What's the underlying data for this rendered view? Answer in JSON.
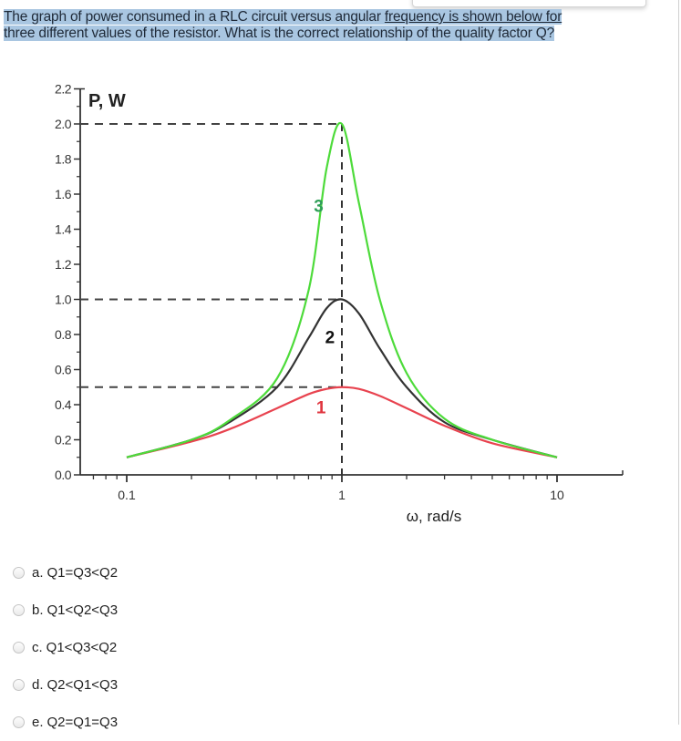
{
  "question": {
    "line1_pre": "The graph of power consumed in a RLC circuit versus angular ",
    "line1_link": "frequency is shown below for",
    "line2": "three different values of the resistor. What is the correct relationship of the quality factor Q?"
  },
  "options": [
    {
      "letter": "a.",
      "text": "Q1=Q3<Q2"
    },
    {
      "letter": "b.",
      "text": "Q1<Q2<Q3"
    },
    {
      "letter": "c.",
      "text": "Q1<Q3<Q2"
    },
    {
      "letter": "d.",
      "text": "Q2<Q1<Q3"
    },
    {
      "letter": "e.",
      "text": "Q2=Q1=Q3"
    }
  ],
  "chart_data": {
    "type": "line",
    "title": "",
    "ylabel": "P, W",
    "xlabel": "ω, rad/s",
    "xscale": "log",
    "xlim": [
      0.05,
      20
    ],
    "ylim": [
      0.0,
      2.2
    ],
    "x_ticks": [
      "0.1",
      "1",
      "10"
    ],
    "y_ticks": [
      "0.0",
      "0.2",
      "0.4",
      "0.6",
      "0.8",
      "1.0",
      "1.2",
      "1.4",
      "1.6",
      "1.8",
      "2.0",
      "2.2"
    ],
    "grid": false,
    "reference_lines": [
      {
        "type": "horizontal",
        "y": 2.0,
        "style": "dashed"
      },
      {
        "type": "horizontal",
        "y": 1.0,
        "style": "dashed"
      },
      {
        "type": "horizontal",
        "y": 0.5,
        "style": "dashed"
      },
      {
        "type": "vertical",
        "x": 1,
        "style": "dashed"
      }
    ],
    "x": [
      0.1,
      0.2,
      0.3,
      0.5,
      0.7,
      0.85,
      1.0,
      1.2,
      1.5,
      2,
      3,
      5,
      10
    ],
    "series": [
      {
        "name": "1",
        "color": "#e8434f",
        "values": [
          0.1,
          0.19,
          0.26,
          0.38,
          0.46,
          0.49,
          0.5,
          0.49,
          0.45,
          0.38,
          0.28,
          0.18,
          0.1
        ]
      },
      {
        "name": "2",
        "color": "#333333",
        "values": [
          0.1,
          0.2,
          0.3,
          0.5,
          0.78,
          0.95,
          1.0,
          0.92,
          0.72,
          0.5,
          0.3,
          0.2,
          0.1
        ]
      },
      {
        "name": "3",
        "color": "#4ddb3a",
        "values": [
          0.1,
          0.2,
          0.31,
          0.55,
          1.05,
          1.75,
          2.0,
          1.55,
          1.0,
          0.58,
          0.32,
          0.2,
          0.1
        ]
      }
    ],
    "annotations": [
      {
        "text": "3",
        "x": 0.78,
        "y": 1.5,
        "color": "#2e9e57"
      },
      {
        "text": "2",
        "x": 0.88,
        "y": 0.75,
        "color": "#111111"
      },
      {
        "text": "1",
        "x": 0.8,
        "y": 0.35,
        "color": "#e0353f"
      }
    ]
  }
}
